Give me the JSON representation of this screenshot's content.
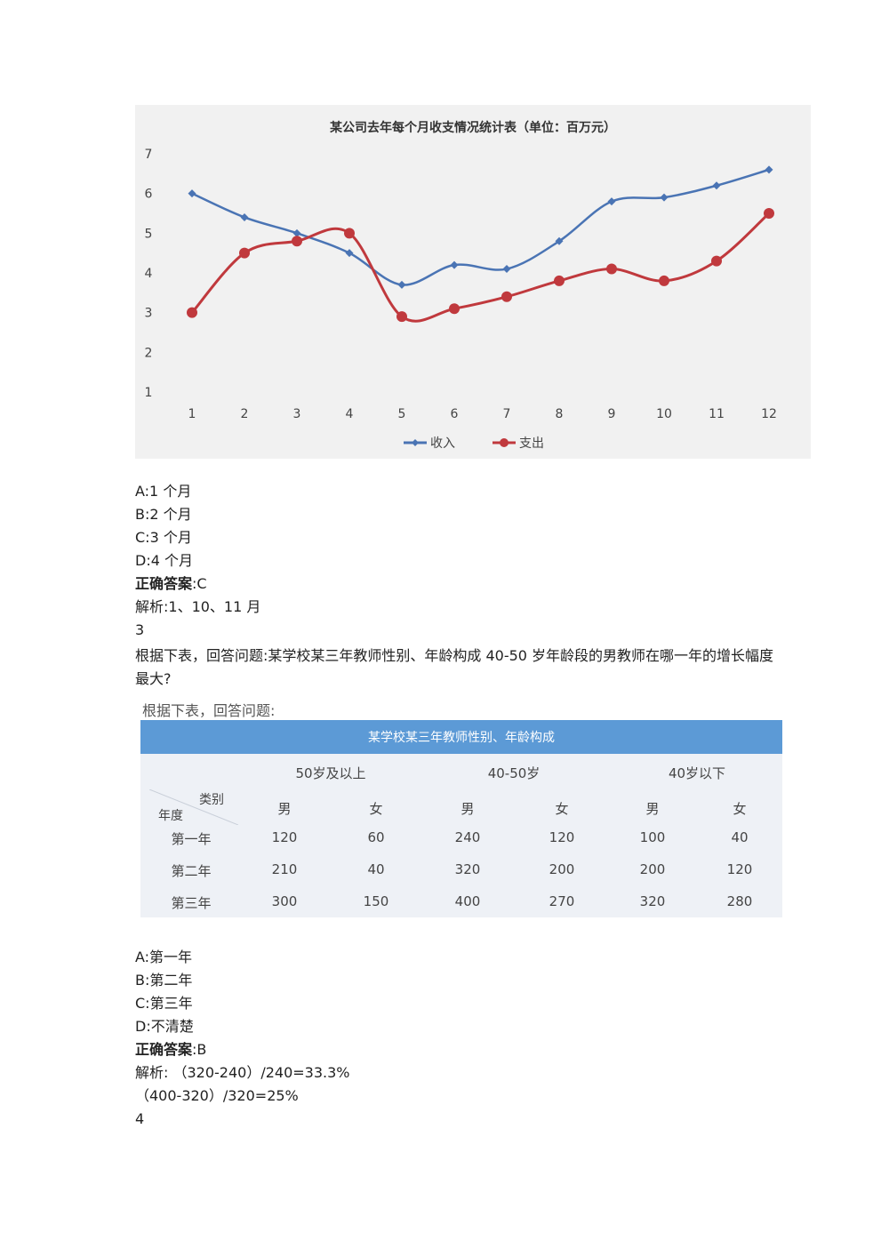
{
  "chart_data": {
    "type": "line",
    "title": "某公司去年每个月收支情况统计表（单位：百万元）",
    "categories": [
      "1",
      "2",
      "3",
      "4",
      "5",
      "6",
      "7",
      "8",
      "9",
      "10",
      "11",
      "12"
    ],
    "ylim": [
      1,
      7
    ],
    "yticks": [
      "1",
      "2",
      "3",
      "4",
      "5",
      "6",
      "7"
    ],
    "grid": false,
    "legend_position": "bottom",
    "series": [
      {
        "name": "收入",
        "color": "#4a74b4",
        "values": [
          6.0,
          5.4,
          5.0,
          4.5,
          3.7,
          4.2,
          4.1,
          4.8,
          5.8,
          5.9,
          6.2,
          6.6
        ]
      },
      {
        "name": "支出",
        "color": "#c0393d",
        "values": [
          3.0,
          4.5,
          4.8,
          5.0,
          2.9,
          3.1,
          3.4,
          3.8,
          4.1,
          3.8,
          4.3,
          5.5
        ]
      }
    ]
  },
  "q2": {
    "options": [
      "A:1 个月",
      "B:2 个月",
      "C:3 个月",
      "D:4 个月"
    ],
    "answer_label": "正确答案",
    "answer_value": ":C",
    "explanation": "解析:1、10、11 月"
  },
  "q3": {
    "number": "3",
    "text": "根据下表，回答问题:某学校某三年教师性别、年龄构成  40-50 岁年龄段的男教师在哪一年的增长幅度最大?",
    "caption": "根据下表，回答问题:",
    "table": {
      "title": "某学校某三年教师性别、年龄构成",
      "groups": [
        "50岁及以上",
        "40-50岁",
        "40岁以下"
      ],
      "corner_top": "类别",
      "corner_bottom": "年度",
      "genders": [
        "男",
        "女",
        "男",
        "女",
        "男",
        "女"
      ],
      "rows": [
        {
          "label": "第一年",
          "values": [
            "120",
            "60",
            "240",
            "120",
            "100",
            "40"
          ]
        },
        {
          "label": "第二年",
          "values": [
            "210",
            "40",
            "320",
            "200",
            "200",
            "120"
          ]
        },
        {
          "label": "第三年",
          "values": [
            "300",
            "150",
            "400",
            "270",
            "320",
            "280"
          ]
        }
      ]
    },
    "options": [
      "A:第一年",
      "B:第二年",
      "C:第三年",
      "D:不清楚"
    ],
    "answer_label": "正确答案",
    "answer_value": ":B",
    "explanation_1": "解析: （320-240）/240=33.3%",
    "explanation_2": "（400-320）/320=25%"
  },
  "q4": {
    "number": "4"
  }
}
